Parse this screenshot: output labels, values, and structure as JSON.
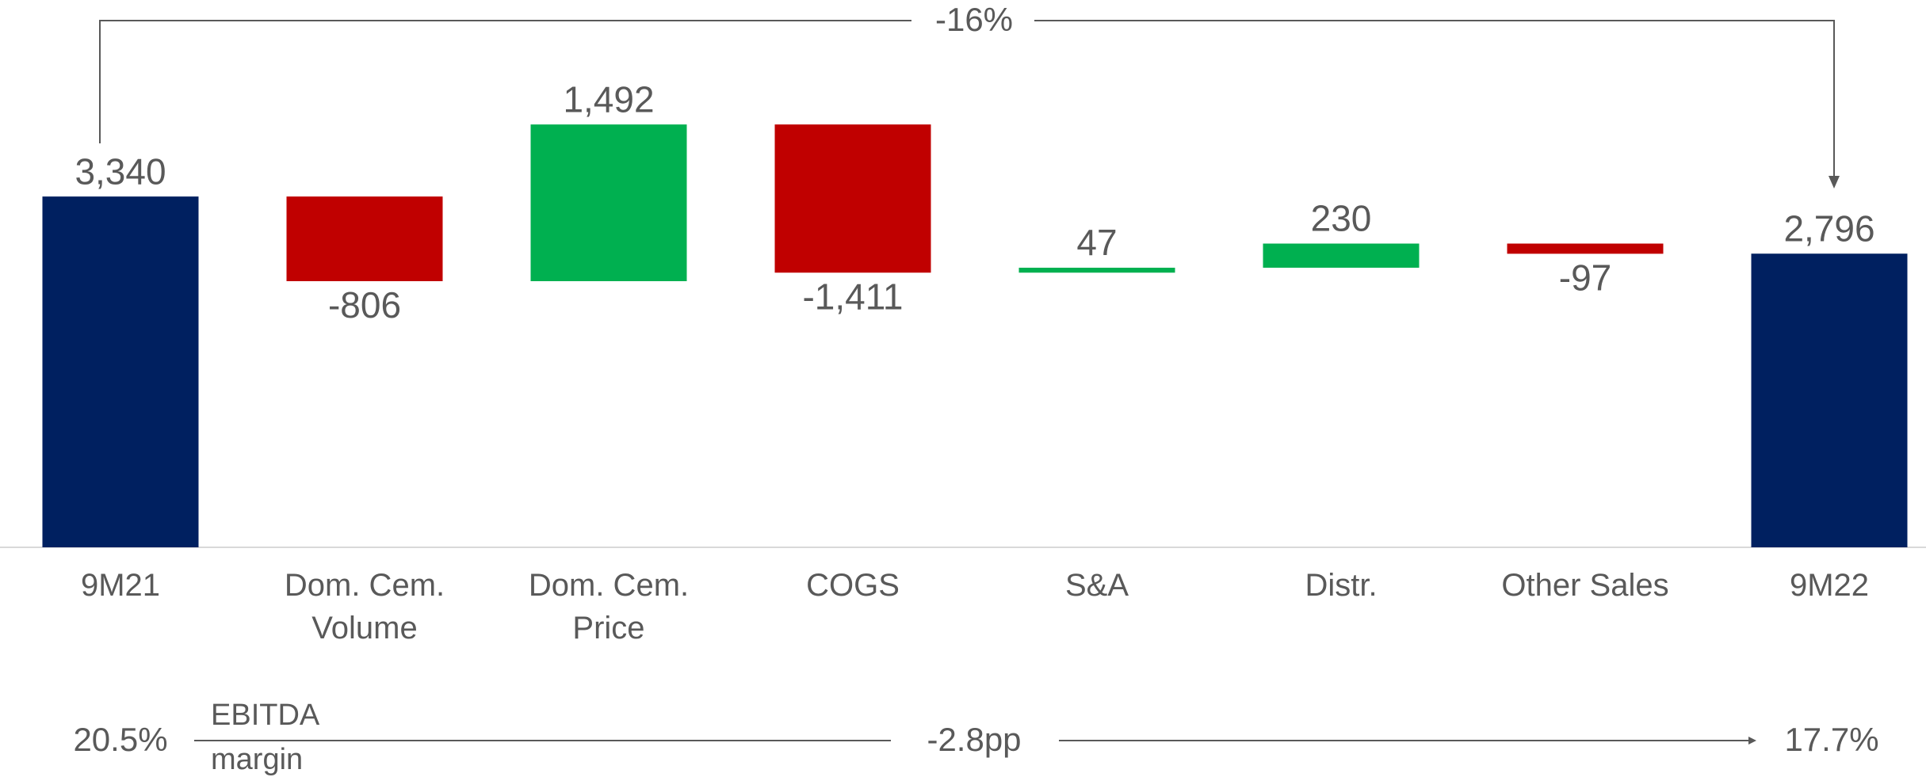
{
  "chart_data": {
    "type": "waterfall",
    "categories": [
      "9M21",
      "Dom. Cem. Volume",
      "Dom. Cem. Price",
      "COGS",
      "S&A",
      "Distr.",
      "Other Sales",
      "9M22"
    ],
    "values": [
      3340,
      -806,
      1492,
      -1411,
      47,
      230,
      -97,
      2796
    ],
    "value_labels": [
      "3,340",
      "-806",
      "1,492",
      "-1,411",
      "47",
      "230",
      "-97",
      "2,796"
    ],
    "measure": [
      "total",
      "relative",
      "relative",
      "relative",
      "relative",
      "relative",
      "relative",
      "total"
    ],
    "colors": {
      "total": "#002060",
      "increase": "#00b050",
      "decrease": "#c00000"
    },
    "ylim": [
      0,
      5000
    ],
    "annotations": {
      "change_top": "-16%",
      "margin_label": "EBITDA margin",
      "margin_start": "20.5%",
      "margin_change": "-2.8pp",
      "margin_end": "17.7%"
    }
  }
}
